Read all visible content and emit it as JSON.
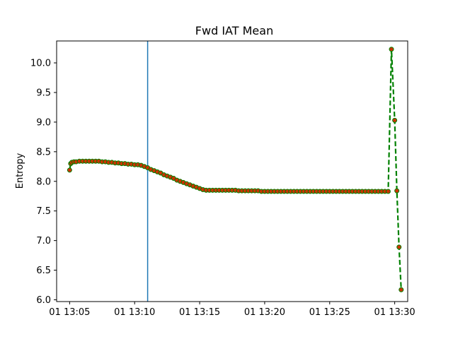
{
  "chart_data": {
    "type": "line",
    "title": "Fwd IAT Mean",
    "xlabel": "",
    "ylabel": "Entropy",
    "x_unit": "minutes",
    "xlim": [
      "13:04",
      "13:31"
    ],
    "ylim": [
      5.97,
      10.37
    ],
    "x_ticks": [
      {
        "value": "13:05",
        "label": "01 13:05"
      },
      {
        "value": "13:10",
        "label": "01 13:10"
      },
      {
        "value": "13:15",
        "label": "01 13:15"
      },
      {
        "value": "13:20",
        "label": "01 13:20"
      },
      {
        "value": "13:25",
        "label": "01 13:25"
      },
      {
        "value": "13:30",
        "label": "01 13:30"
      }
    ],
    "y_ticks": [
      {
        "value": 6.0,
        "label": "6.0"
      },
      {
        "value": 6.5,
        "label": "6.5"
      },
      {
        "value": 7.0,
        "label": "7.0"
      },
      {
        "value": 7.5,
        "label": "7.5"
      },
      {
        "value": 8.0,
        "label": "8.0"
      },
      {
        "value": 8.5,
        "label": "8.5"
      },
      {
        "value": 9.0,
        "label": "9.0"
      },
      {
        "value": 9.5,
        "label": "9.5"
      },
      {
        "value": 10.0,
        "label": "10.0"
      }
    ],
    "vertical_line": {
      "x": "13:11",
      "color": "#1f77b4"
    },
    "grid": false,
    "series": [
      {
        "line_color": "#008000",
        "marker_color": "#cc3300",
        "line_style": "dashed",
        "points": [
          [
            "13:05:00",
            8.19
          ],
          [
            "13:05:05",
            8.3
          ],
          [
            "13:05:10",
            8.32
          ],
          [
            "13:05:20",
            8.33
          ],
          [
            "13:05:30",
            8.33
          ],
          [
            "13:05:45",
            8.34
          ],
          [
            "13:06:00",
            8.34
          ],
          [
            "13:06:15",
            8.34
          ],
          [
            "13:06:30",
            8.34
          ],
          [
            "13:06:45",
            8.34
          ],
          [
            "13:07:00",
            8.34
          ],
          [
            "13:07:15",
            8.34
          ],
          [
            "13:07:30",
            8.33
          ],
          [
            "13:07:45",
            8.33
          ],
          [
            "13:08:00",
            8.32
          ],
          [
            "13:08:15",
            8.32
          ],
          [
            "13:08:30",
            8.31
          ],
          [
            "13:08:45",
            8.31
          ],
          [
            "13:09:00",
            8.3
          ],
          [
            "13:09:15",
            8.3
          ],
          [
            "13:09:30",
            8.29
          ],
          [
            "13:09:45",
            8.29
          ],
          [
            "13:10:00",
            8.28
          ],
          [
            "13:10:15",
            8.28
          ],
          [
            "13:10:30",
            8.27
          ],
          [
            "13:10:45",
            8.25
          ],
          [
            "13:11:00",
            8.23
          ],
          [
            "13:11:15",
            8.2
          ],
          [
            "13:11:30",
            8.18
          ],
          [
            "13:11:45",
            8.16
          ],
          [
            "13:12:00",
            8.14
          ],
          [
            "13:12:15",
            8.11
          ],
          [
            "13:12:30",
            8.09
          ],
          [
            "13:12:45",
            8.07
          ],
          [
            "13:13:00",
            8.05
          ],
          [
            "13:13:15",
            8.02
          ],
          [
            "13:13:30",
            8.0
          ],
          [
            "13:13:45",
            7.98
          ],
          [
            "13:14:00",
            7.96
          ],
          [
            "13:14:15",
            7.94
          ],
          [
            "13:14:30",
            7.92
          ],
          [
            "13:14:45",
            7.9
          ],
          [
            "13:15:00",
            7.88
          ],
          [
            "13:15:15",
            7.86
          ],
          [
            "13:15:30",
            7.85
          ],
          [
            "13:15:45",
            7.85
          ],
          [
            "13:16:00",
            7.85
          ],
          [
            "13:16:15",
            7.85
          ],
          [
            "13:16:30",
            7.85
          ],
          [
            "13:16:45",
            7.85
          ],
          [
            "13:17:00",
            7.85
          ],
          [
            "13:17:15",
            7.85
          ],
          [
            "13:17:30",
            7.85
          ],
          [
            "13:17:45",
            7.85
          ],
          [
            "13:18:00",
            7.84
          ],
          [
            "13:18:15",
            7.84
          ],
          [
            "13:18:30",
            7.84
          ],
          [
            "13:18:45",
            7.84
          ],
          [
            "13:19:00",
            7.84
          ],
          [
            "13:19:15",
            7.84
          ],
          [
            "13:19:30",
            7.84
          ],
          [
            "13:19:45",
            7.83
          ],
          [
            "13:20:00",
            7.83
          ],
          [
            "13:20:15",
            7.83
          ],
          [
            "13:20:30",
            7.83
          ],
          [
            "13:20:45",
            7.83
          ],
          [
            "13:21:00",
            7.83
          ],
          [
            "13:21:15",
            7.83
          ],
          [
            "13:21:30",
            7.83
          ],
          [
            "13:21:45",
            7.83
          ],
          [
            "13:22:00",
            7.83
          ],
          [
            "13:22:15",
            7.83
          ],
          [
            "13:22:30",
            7.83
          ],
          [
            "13:22:45",
            7.83
          ],
          [
            "13:23:00",
            7.83
          ],
          [
            "13:23:15",
            7.83
          ],
          [
            "13:23:30",
            7.83
          ],
          [
            "13:23:45",
            7.83
          ],
          [
            "13:24:00",
            7.83
          ],
          [
            "13:24:15",
            7.83
          ],
          [
            "13:24:30",
            7.83
          ],
          [
            "13:24:45",
            7.83
          ],
          [
            "13:25:00",
            7.83
          ],
          [
            "13:25:15",
            7.83
          ],
          [
            "13:25:30",
            7.83
          ],
          [
            "13:25:45",
            7.83
          ],
          [
            "13:26:00",
            7.83
          ],
          [
            "13:26:15",
            7.83
          ],
          [
            "13:26:30",
            7.83
          ],
          [
            "13:26:45",
            7.83
          ],
          [
            "13:27:00",
            7.83
          ],
          [
            "13:27:15",
            7.83
          ],
          [
            "13:27:30",
            7.83
          ],
          [
            "13:27:45",
            7.83
          ],
          [
            "13:28:00",
            7.83
          ],
          [
            "13:28:15",
            7.83
          ],
          [
            "13:28:30",
            7.83
          ],
          [
            "13:28:45",
            7.83
          ],
          [
            "13:29:00",
            7.83
          ],
          [
            "13:29:15",
            7.83
          ],
          [
            "13:29:30",
            7.83
          ],
          [
            "13:29:45",
            10.23
          ],
          [
            "13:30:00",
            9.03
          ],
          [
            "13:30:10",
            7.84
          ],
          [
            "13:30:20",
            6.89
          ],
          [
            "13:30:30",
            6.17
          ]
        ]
      }
    ]
  }
}
